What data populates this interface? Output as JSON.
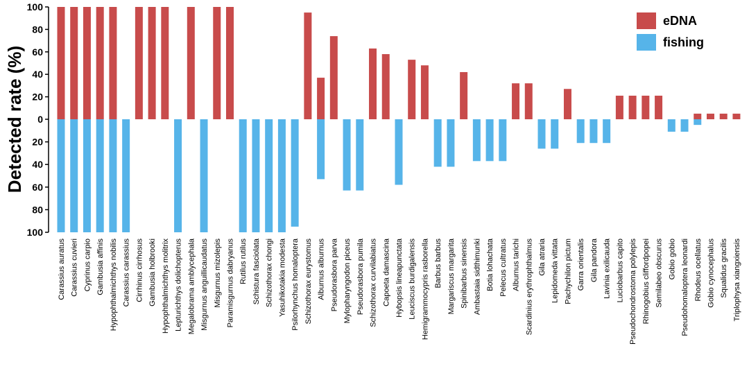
{
  "chart_data": {
    "type": "bar",
    "ylabel": "Detected rate (%)",
    "xlabel": "",
    "ylim_up": [
      0,
      100
    ],
    "ylim_down": [
      0,
      100
    ],
    "yticks": [
      "100",
      "80",
      "60",
      "40",
      "20",
      "0",
      "20",
      "40",
      "60",
      "80",
      "100"
    ],
    "legend_position": "top-right",
    "colors": {
      "eDNA": "#c84b4b",
      "fishing": "#56b4e9"
    },
    "categories": [
      "Carassius auratus",
      "Carassius cuvieri",
      "Cyprinus carpio",
      "Gambusia affinis",
      "Hypophthalmichthys nobilis",
      "Carassius carassius",
      "Cirrhinus cirrhosus",
      "Gambusia holbrooki",
      "Hypophthalmichthys molitrix",
      "Lepturichthys dolichopterus",
      "Megalobrama amblycephala",
      "Misgurnus anguillicaudatus",
      "Misgurnus mizolepis",
      "Paramisgurnus dabryanus",
      "Rutilus rutilus",
      "Schistura fasciolata",
      "Schizothorax chongi",
      "Yasuhikotakia modesta",
      "Psilorhynchus homaloptera",
      "Schizothorax eurystomus",
      "Alburnus alburnus",
      "Pseudorasbora parva",
      "Mylopharyngodon piceus",
      "Pseudorasbora pumila",
      "Schizothorax curvilabiatus",
      "Capoeta damascina",
      "Hybopsis lineapunctata",
      "Leuciscus burdigalensis",
      "Hemigrammocypris rasborella",
      "Barbus barbus",
      "Margariscus margarita",
      "Spinibarbus sinensis",
      "Ambastaia sidthimunki",
      "Botia lohachata",
      "Pelecus cultratus",
      "Alburnus tarichi",
      "Scardinius erythrophthalmus",
      "Gila atraria",
      "Lepidomeda vittata",
      "Pachychilon pictum",
      "Garra orientalis",
      "Gila pandora",
      "Lavinia exilicauda",
      "Luciobarbus capito",
      "Pseudochondrostoma polylepis",
      "Rhinogobius cliffordpopei",
      "Semilabeo obscurus",
      "Gobio gobio",
      "Pseudohomaloptera leonardi",
      "Rhodeus ocellatus",
      "Gobio cynocephalus",
      "Squalidus gracilis",
      "Triplophysa xiangxiensis"
    ],
    "series": [
      {
        "name": "eDNA",
        "values": [
          100,
          100,
          100,
          100,
          100,
          0,
          100,
          100,
          100,
          0,
          100,
          0,
          100,
          100,
          0,
          0,
          0,
          0,
          0,
          95,
          37,
          74,
          0,
          0,
          63,
          58,
          0,
          53,
          48,
          0,
          0,
          42,
          0,
          0,
          0,
          32,
          32,
          0,
          0,
          27,
          0,
          0,
          0,
          21,
          21,
          21,
          21,
          0,
          0,
          5,
          5,
          5,
          5
        ]
      },
      {
        "name": "fishing",
        "values": [
          100,
          100,
          100,
          100,
          100,
          100,
          0,
          0,
          0,
          100,
          0,
          100,
          0,
          0,
          100,
          100,
          100,
          100,
          95,
          0,
          53,
          0,
          63,
          63,
          0,
          0,
          58,
          0,
          0,
          42,
          42,
          0,
          37,
          37,
          37,
          0,
          0,
          26,
          26,
          0,
          21,
          21,
          21,
          0,
          0,
          0,
          0,
          11,
          11,
          5,
          0,
          0,
          0
        ]
      }
    ]
  }
}
